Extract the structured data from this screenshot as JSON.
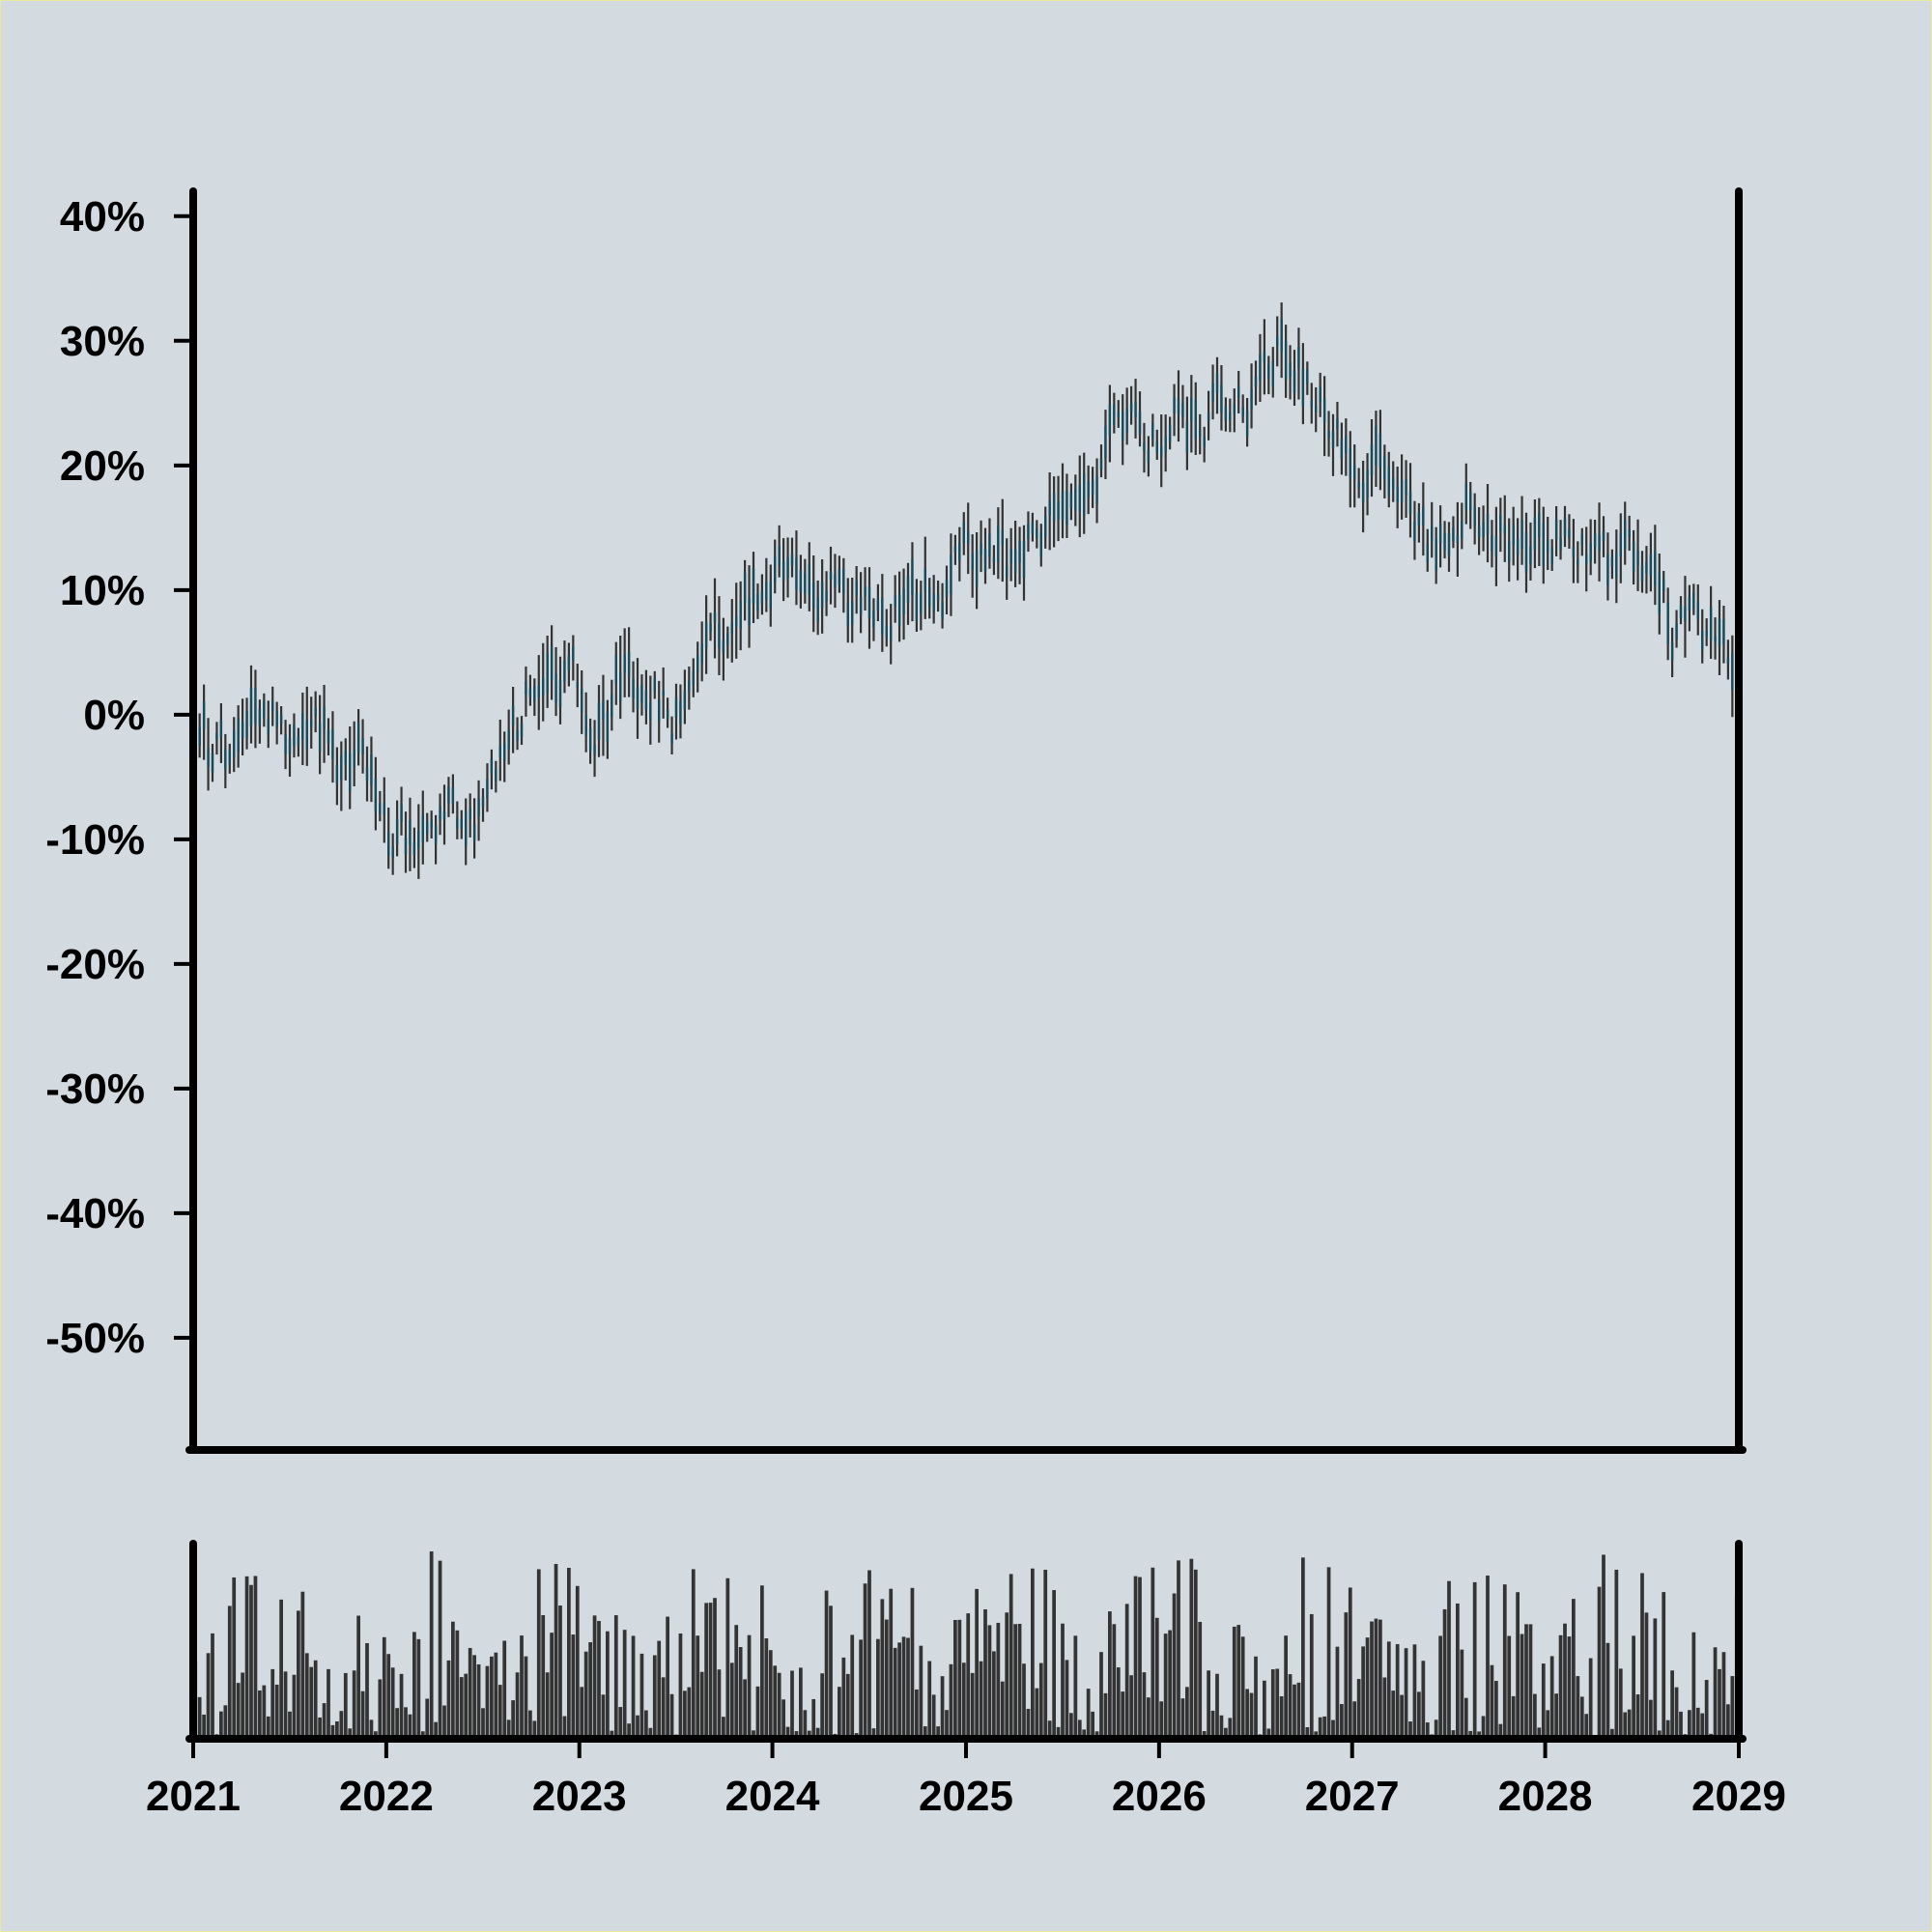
{
  "chart_data": {
    "type": "ohlc",
    "title": "",
    "xlabel": "",
    "ylabel": "",
    "colors": {
      "background": "#d3dbe0",
      "axes": "#000000",
      "bar_body": "#1a4a5a",
      "wick": "#333333",
      "volume": "#333333"
    },
    "y_axis": {
      "range": [
        -0.59,
        0.42
      ],
      "ticks": [
        0.4,
        0.3,
        0.2,
        0.1,
        0,
        -0.1,
        -0.2,
        -0.3,
        -0.4,
        -0.5
      ],
      "tick_labels": [
        "40%",
        "30%",
        "20%",
        "10%",
        "0%",
        "-10%",
        "-20%",
        "-30%",
        "-40%",
        "-50%"
      ]
    },
    "x_axis": {
      "range": [
        "2021-01-01",
        "2029-01-01"
      ],
      "ticks": [
        "2021",
        "2022",
        "2023",
        "2024",
        "2025",
        "2026",
        "2027",
        "2028",
        "2029"
      ],
      "tick_labels": [
        "2021",
        "2022",
        "2023",
        "2024",
        "2025",
        "2026",
        "2027",
        "2028",
        "2029"
      ]
    },
    "grid": false,
    "legend": "none",
    "price_anchor_points": [
      {
        "x": "2021-01-01",
        "y": -0.03
      },
      {
        "x": "2021-04-01",
        "y": -0.03
      },
      {
        "x": "2021-05-01",
        "y": 0.02
      },
      {
        "x": "2021-07-01",
        "y": -0.01
      },
      {
        "x": "2021-08-15",
        "y": 0.02
      },
      {
        "x": "2021-10-01",
        "y": -0.06
      },
      {
        "x": "2021-11-15",
        "y": -0.04
      },
      {
        "x": "2022-01-15",
        "y": -0.1
      },
      {
        "x": "2022-04-01",
        "y": -0.09
      },
      {
        "x": "2022-07-01",
        "y": -0.08
      },
      {
        "x": "2022-10-01",
        "y": 0.02
      },
      {
        "x": "2022-12-15",
        "y": 0.03
      },
      {
        "x": "2023-02-01",
        "y": -0.02
      },
      {
        "x": "2023-04-01",
        "y": 0.04
      },
      {
        "x": "2023-07-01",
        "y": 0.0
      },
      {
        "x": "2023-10-01",
        "y": 0.07
      },
      {
        "x": "2024-01-01",
        "y": 0.11
      },
      {
        "x": "2024-04-01",
        "y": 0.1
      },
      {
        "x": "2024-07-01",
        "y": 0.09
      },
      {
        "x": "2024-10-01",
        "y": 0.09
      },
      {
        "x": "2025-01-01",
        "y": 0.13
      },
      {
        "x": "2025-04-01",
        "y": 0.12
      },
      {
        "x": "2025-07-01",
        "y": 0.18
      },
      {
        "x": "2025-10-01",
        "y": 0.22
      },
      {
        "x": "2026-01-01",
        "y": 0.22
      },
      {
        "x": "2026-04-01",
        "y": 0.24
      },
      {
        "x": "2026-07-01",
        "y": 0.26
      },
      {
        "x": "2026-08-20",
        "y": 0.29
      },
      {
        "x": "2026-11-01",
        "y": 0.25
      },
      {
        "x": "2027-01-01",
        "y": 0.21
      },
      {
        "x": "2027-04-01",
        "y": 0.18
      },
      {
        "x": "2027-06-15",
        "y": 0.13
      },
      {
        "x": "2027-08-01",
        "y": 0.17
      },
      {
        "x": "2027-11-01",
        "y": 0.14
      },
      {
        "x": "2028-02-01",
        "y": 0.15
      },
      {
        "x": "2028-04-01",
        "y": 0.12
      },
      {
        "x": "2028-07-01",
        "y": 0.13
      },
      {
        "x": "2028-09-01",
        "y": 0.06
      },
      {
        "x": "2028-11-01",
        "y": 0.07
      },
      {
        "x": "2029-01-01",
        "y": 0.04
      }
    ],
    "bar_count": 360,
    "volume_panel": {
      "y_axis_labels": "none"
    }
  }
}
